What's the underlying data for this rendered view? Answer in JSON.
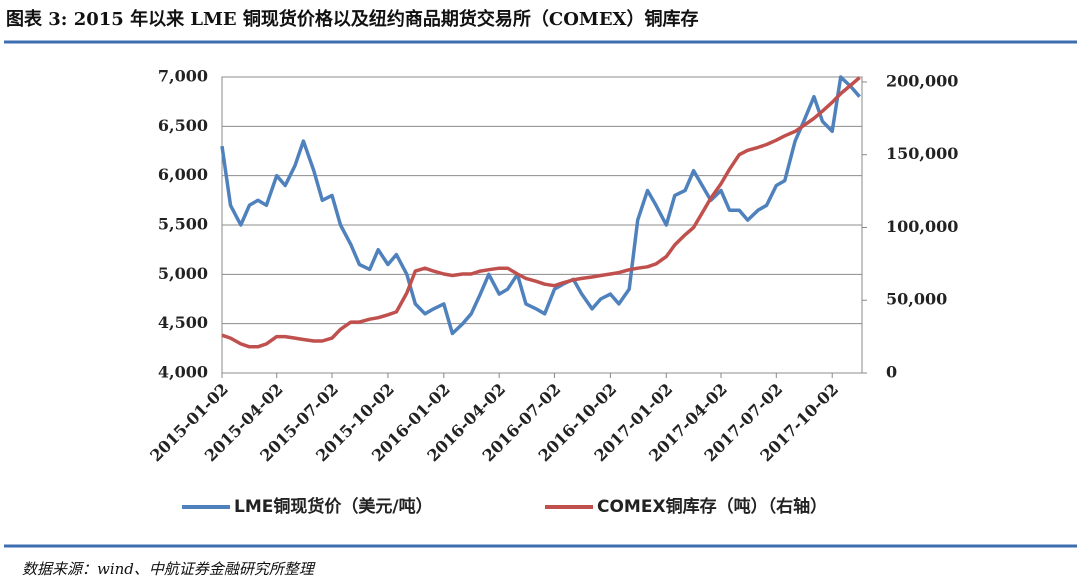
{
  "header": {
    "title": "图表 3:  2015 年以来 LME 铜现货价格以及纽约商品期货交易所（COMEX）铜库存"
  },
  "footer": {
    "source": "数据来源：wind、中航证券金融研究所整理"
  },
  "chart_data": {
    "type": "line",
    "x": [
      "2015-01-02",
      "2015-01-16",
      "2015-02-02",
      "2015-02-16",
      "2015-03-02",
      "2015-03-16",
      "2015-04-02",
      "2015-04-16",
      "2015-05-02",
      "2015-05-16",
      "2015-06-02",
      "2015-06-16",
      "2015-07-02",
      "2015-07-16",
      "2015-08-02",
      "2015-08-16",
      "2015-09-02",
      "2015-09-16",
      "2015-10-02",
      "2015-10-16",
      "2015-11-02",
      "2015-11-16",
      "2015-12-02",
      "2015-12-16",
      "2016-01-02",
      "2016-01-16",
      "2016-02-02",
      "2016-02-16",
      "2016-03-02",
      "2016-03-16",
      "2016-04-02",
      "2016-04-16",
      "2016-05-02",
      "2016-05-16",
      "2016-06-02",
      "2016-06-16",
      "2016-07-02",
      "2016-07-16",
      "2016-08-02",
      "2016-08-16",
      "2016-09-02",
      "2016-09-16",
      "2016-10-02",
      "2016-10-16",
      "2016-11-02",
      "2016-11-16",
      "2016-12-02",
      "2016-12-16",
      "2017-01-02",
      "2017-01-16",
      "2017-02-02",
      "2017-02-16",
      "2017-03-02",
      "2017-03-16",
      "2017-04-02",
      "2017-04-16",
      "2017-05-02",
      "2017-05-16",
      "2017-06-02",
      "2017-06-16",
      "2017-07-02",
      "2017-07-16",
      "2017-08-02",
      "2017-08-16",
      "2017-09-02",
      "2017-09-16",
      "2017-10-02",
      "2017-10-16",
      "2017-11-02",
      "2017-11-16"
    ],
    "xlim": [
      "2015-01-02",
      "2017-11-20"
    ],
    "xticks": [
      "2015-01-02",
      "2015-04-02",
      "2015-07-02",
      "2015-10-02",
      "2016-01-02",
      "2016-04-02",
      "2016-07-02",
      "2016-10-02",
      "2017-01-02",
      "2017-04-02",
      "2017-07-02",
      "2017-10-02"
    ],
    "ylim": [
      4000,
      7000
    ],
    "yticks": [
      {
        "value": 4000,
        "label": "4,000"
      },
      {
        "value": 4500,
        "label": "4,500"
      },
      {
        "value": 5000,
        "label": "5,000"
      },
      {
        "value": 5500,
        "label": "5,500"
      },
      {
        "value": 6000,
        "label": "6,000"
      },
      {
        "value": 6500,
        "label": "6,500"
      },
      {
        "value": 7000,
        "label": "7,000"
      }
    ],
    "y2lim": [
      0,
      203400
    ],
    "y2ticks": [
      0,
      {
        "value": 50000,
        "label": "50,000"
      },
      {
        "value": 100000,
        "label": "100,000"
      },
      {
        "value": 150000,
        "label": "150,000"
      },
      {
        "value": 200000,
        "label": "200,000"
      }
    ],
    "grid": true,
    "series": [
      {
        "name": "LME铜现货价（美元/吨）",
        "color": "#4f81bd",
        "values": [
          6300,
          5700,
          5500,
          5700,
          5750,
          5700,
          6000,
          5900,
          6100,
          6350,
          6050,
          5750,
          5800,
          5500,
          5300,
          5100,
          5050,
          5250,
          5100,
          5200,
          5000,
          4700,
          4600,
          4650,
          4700,
          4400,
          4500,
          4600,
          4800,
          5000,
          4800,
          4850,
          5000,
          4700,
          4650,
          4600,
          4850,
          4900,
          4950,
          4800,
          4650,
          4750,
          4800,
          4700,
          4850,
          5550,
          5850,
          5700,
          5500,
          5800,
          5850,
          6050,
          5900,
          5750,
          5850,
          5650,
          5650,
          5550,
          5650,
          5700,
          5900,
          5950,
          6350,
          6550,
          6800,
          6550,
          6450,
          7000,
          6900,
          6800
        ]
      },
      {
        "name": "COMEX铜库存（吨）（右轴）",
        "color": "#c0504d",
        "axis": "y2",
        "values": [
          26000,
          24000,
          20000,
          18000,
          18000,
          20000,
          25000,
          25000,
          24000,
          23000,
          22000,
          22000,
          24000,
          30000,
          35000,
          35000,
          37000,
          38000,
          40000,
          42000,
          55000,
          70000,
          72000,
          70000,
          68000,
          67000,
          68000,
          68000,
          70000,
          71000,
          72000,
          72000,
          68000,
          65000,
          63000,
          61000,
          60000,
          62000,
          64000,
          65000,
          66000,
          67000,
          68000,
          69000,
          71000,
          72000,
          73000,
          75000,
          80000,
          88000,
          95000,
          100000,
          110000,
          120000,
          130000,
          140000,
          150000,
          153000,
          155000,
          157000,
          160000,
          163000,
          166000,
          170000,
          175000,
          180000,
          186000,
          192000,
          198000,
          203000
        ]
      }
    ],
    "legend": "bottom"
  }
}
